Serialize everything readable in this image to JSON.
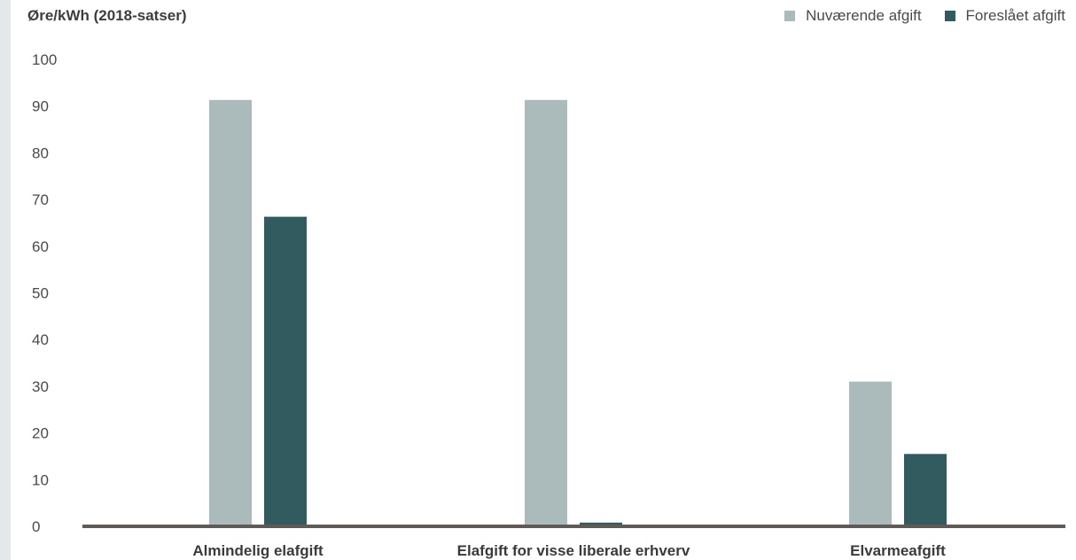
{
  "chart_data": {
    "type": "bar",
    "title": "",
    "ylabel": "Øre/kWh (2018-satser)",
    "xlabel": "",
    "ylim": [
      0,
      100
    ],
    "yticks": [
      0,
      10,
      20,
      30,
      40,
      50,
      60,
      70,
      80,
      90,
      100
    ],
    "grid": false,
    "legend_position": "top-right",
    "categories": [
      "Almindelig elafgift",
      "Elafgift for visse liberale erhverv",
      "Elvarmeafgift"
    ],
    "series": [
      {
        "name": "Nuværende afgift",
        "color": "#abbaba",
        "values": [
          91.3,
          91.3,
          31.0
        ]
      },
      {
        "name": "Foreslået afgift",
        "color": "#325b5f",
        "values": [
          66.3,
          0.8,
          15.5
        ]
      }
    ],
    "axis_color": "#5e5a55"
  }
}
